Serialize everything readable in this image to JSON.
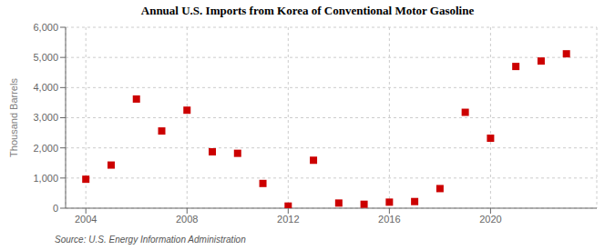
{
  "chart_data": {
    "type": "scatter",
    "title": "Annual U.S. Imports from Korea of Conventional Motor Gasoline",
    "ylabel": "Thousand Barrels",
    "source": "Source: U.S. Energy Information Administration",
    "x": [
      2004,
      2005,
      2006,
      2007,
      2008,
      2009,
      2010,
      2011,
      2012,
      2013,
      2014,
      2015,
      2016,
      2017,
      2018,
      2019,
      2020,
      2021,
      2022,
      2023
    ],
    "values": [
      960,
      1430,
      3620,
      2560,
      3250,
      1870,
      1820,
      820,
      70,
      1590,
      170,
      130,
      200,
      220,
      650,
      3180,
      2320,
      4700,
      4880,
      5120
    ],
    "color": "#cc0000",
    "marker": "square",
    "xlim": [
      2003.2,
      2024.2
    ],
    "xticks": [
      2004,
      2008,
      2012,
      2016,
      2020
    ],
    "ylim": [
      0,
      6000
    ],
    "yticks": [
      0,
      {
        "value": 1000,
        "label": "1,000"
      },
      {
        "value": 2000,
        "label": "2,000"
      },
      {
        "value": 3000,
        "label": "3,000"
      },
      {
        "value": 4000,
        "label": "4,000"
      },
      {
        "value": 5000,
        "label": "5,000"
      },
      {
        "value": 6000,
        "label": "6,000"
      }
    ],
    "grid": true
  }
}
